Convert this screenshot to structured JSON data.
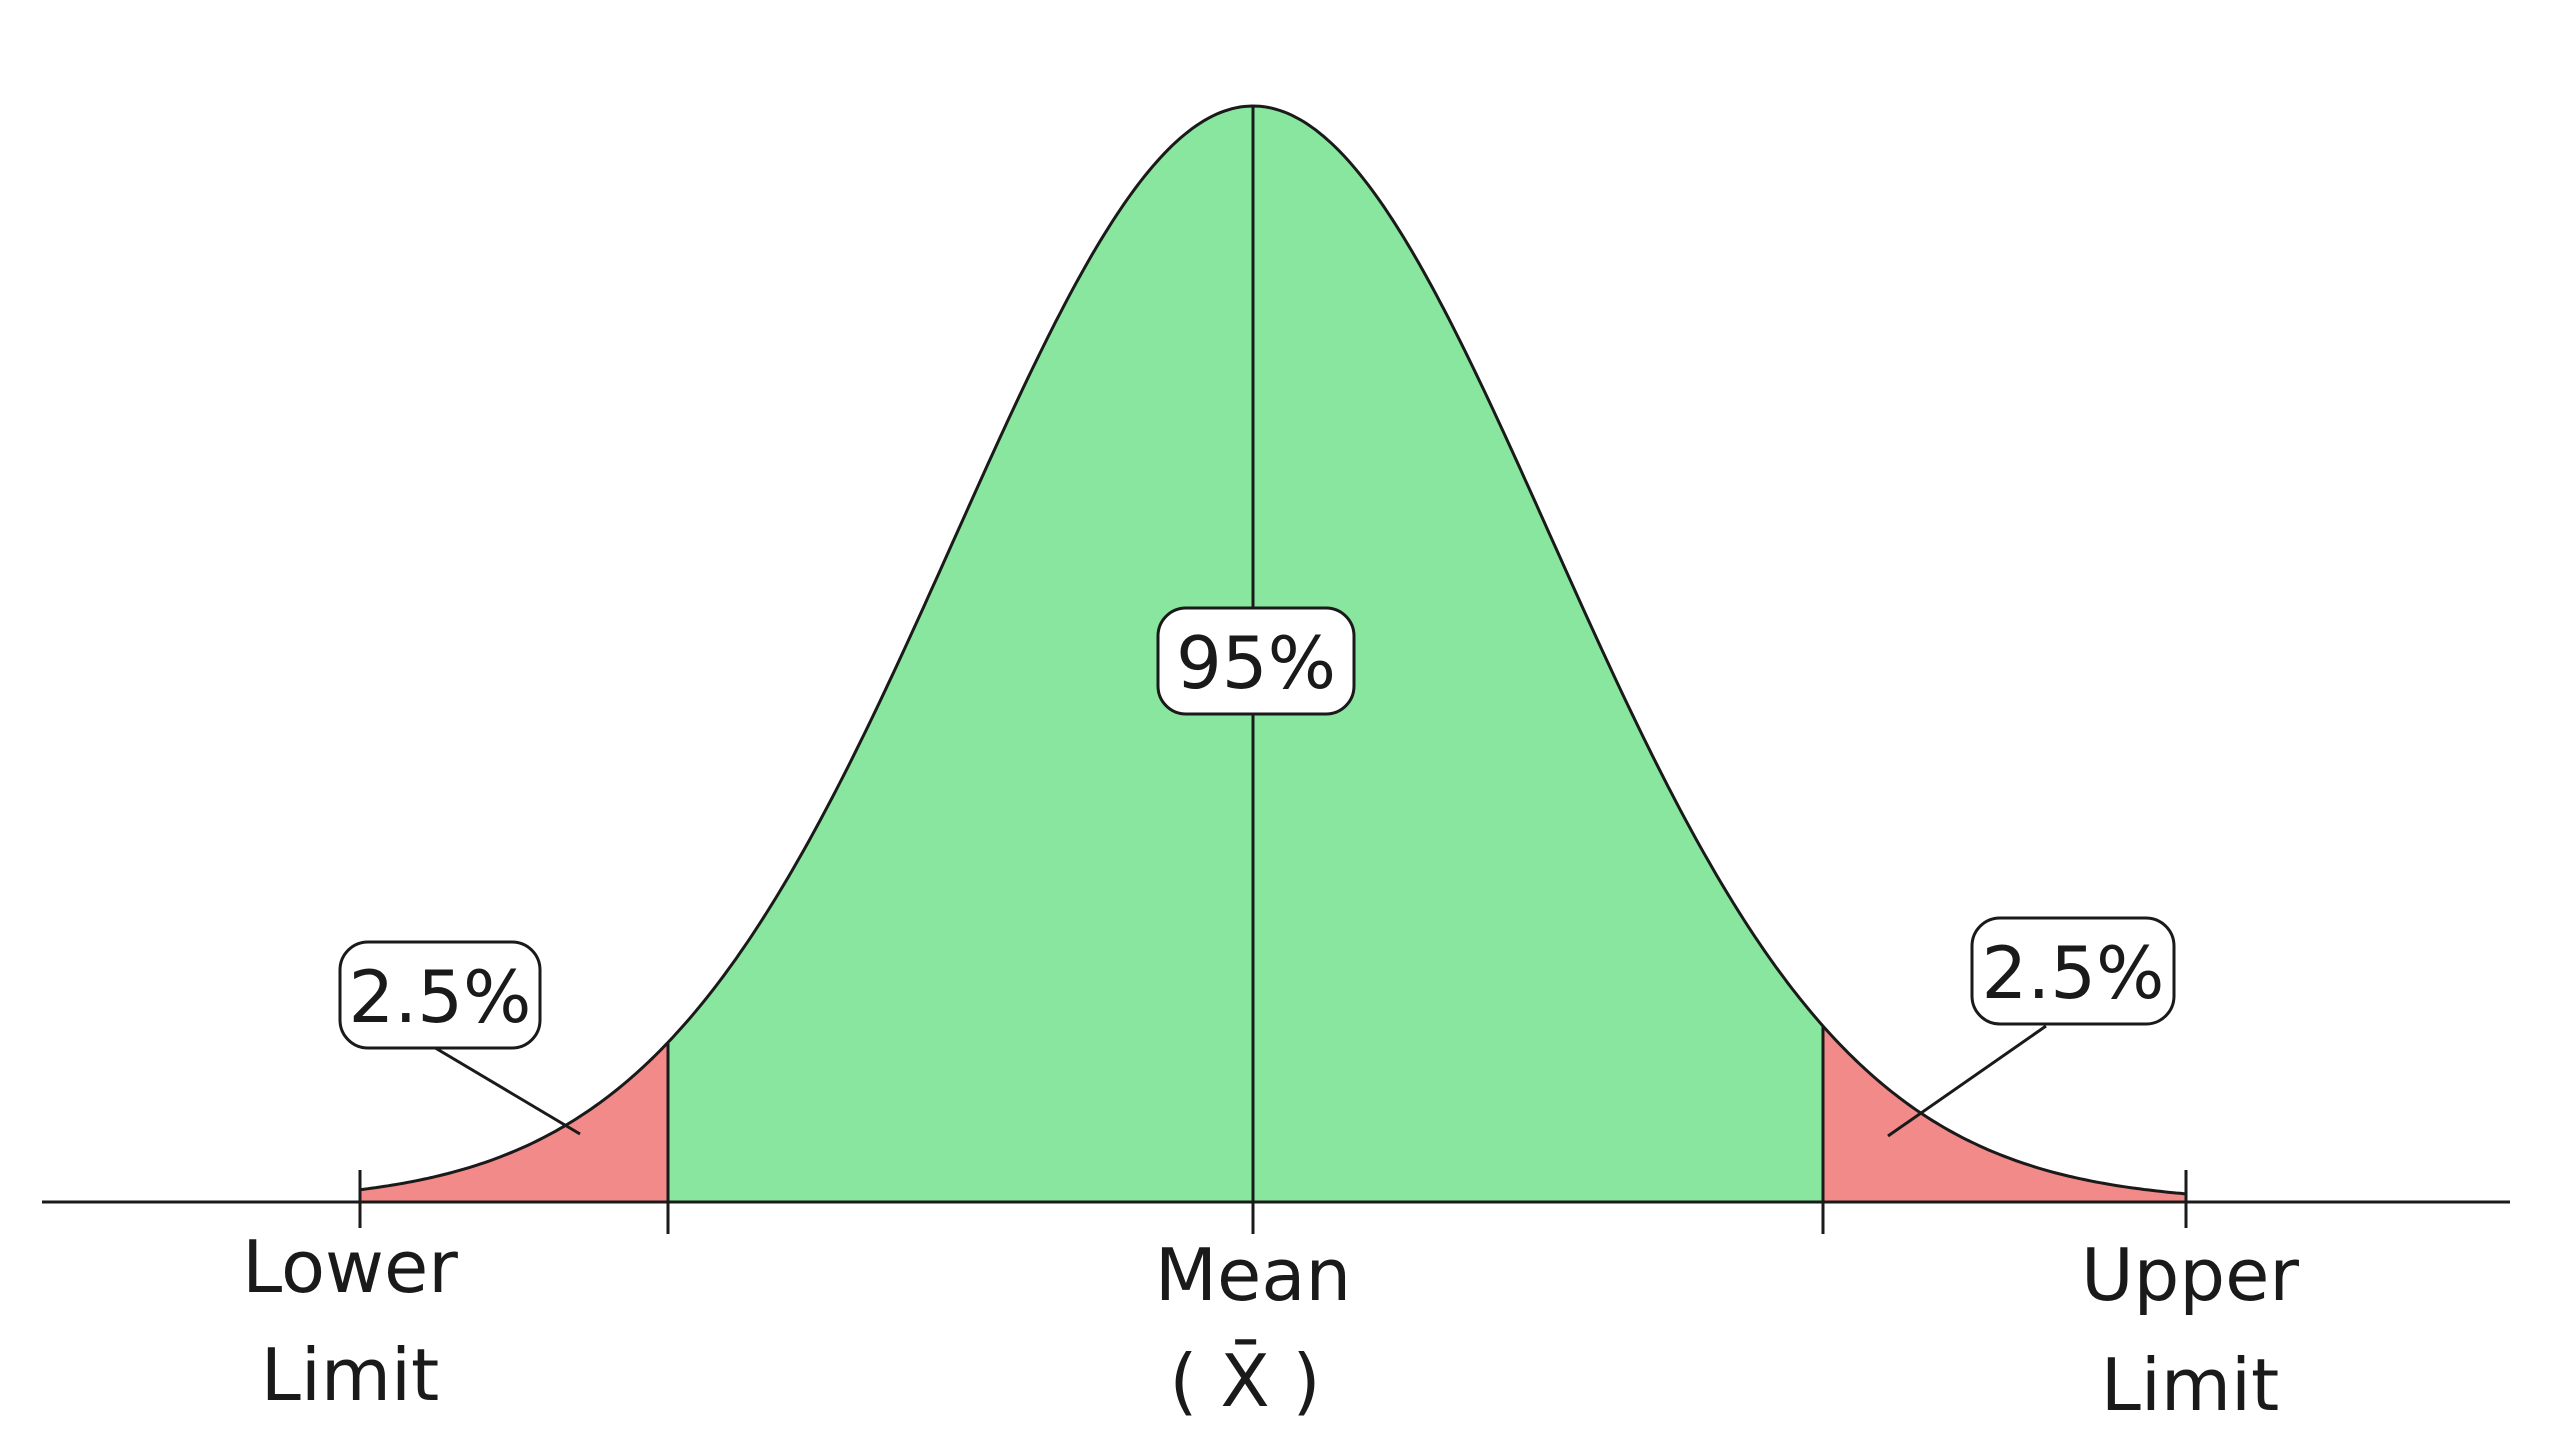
{
  "colors": {
    "center_region": "#88e69e",
    "tail_region": "#f28a8a",
    "ink": "#1a1a1a"
  },
  "regions": {
    "center_percent": "95%",
    "left_tail_percent": "2.5%",
    "right_tail_percent": "2.5%"
  },
  "axis": {
    "lower_limit_line1": "Lower",
    "lower_limit_line2": "Limit",
    "mean_line1": "Mean",
    "mean_line2": "( X̄ )",
    "upper_limit_line1": "Upper",
    "upper_limit_line2": "Limit"
  }
}
